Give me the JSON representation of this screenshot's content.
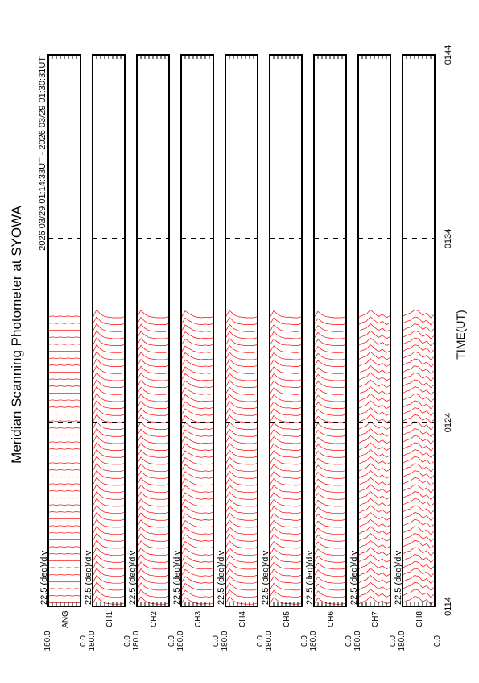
{
  "chart_data": {
    "type": "stacked-scan",
    "title": "Meridian Scanning Photometer at SYOWA",
    "subtitle": "2026 03/29 01:14:33UT - 2026 03/29 01:30:31UT",
    "x_label": "TIME(UT)",
    "xlim": [
      0,
      30
    ],
    "xticks": [
      {
        "value": 0,
        "label": "0114"
      },
      {
        "value": 10,
        "label": "0124"
      },
      {
        "value": 20,
        "label": "0134"
      },
      {
        "value": 30,
        "label": "0144"
      }
    ],
    "angles": [
      0,
      22.5,
      45,
      67.5,
      90,
      112.5,
      135,
      157.5,
      180
    ],
    "angle_ticks": [
      {
        "value": 180,
        "label": "180.0"
      },
      {
        "value": 0,
        "label": "0.0"
      }
    ],
    "scale_label": "22.5 (deg)/div",
    "color": "#ff0000",
    "scan_times": [
      0,
      0.38,
      0.76,
      1.14,
      1.52,
      1.9,
      2.28,
      2.66,
      3.04,
      3.42,
      3.8,
      4.18,
      4.56,
      4.94,
      5.32,
      5.7,
      6.08,
      6.46,
      6.84,
      7.22,
      7.6,
      7.98,
      8.36,
      8.74,
      9.12,
      9.5,
      9.88,
      10.26,
      10.64,
      11.02,
      11.4,
      11.78,
      12.16,
      12.54,
      12.92,
      13.3,
      13.68,
      14.06,
      14.44,
      14.82,
      15.2,
      15.58
    ],
    "series": [
      {
        "name": "ANG",
        "values": [
          0.3,
          0.35,
          0.3,
          0.35,
          0.3,
          0.35,
          0.3,
          0.35,
          0.3
        ]
      },
      {
        "name": "CH1",
        "values": [
          0.3,
          0.2,
          0.2,
          0.2,
          0.25,
          0.3,
          0.5,
          0.9,
          0.2
        ]
      },
      {
        "name": "CH2",
        "values": [
          0.3,
          0.2,
          0.2,
          0.2,
          0.25,
          0.3,
          0.5,
          0.85,
          0.2
        ]
      },
      {
        "name": "CH3",
        "values": [
          0.3,
          0.2,
          0.25,
          0.2,
          0.25,
          0.35,
          0.55,
          0.8,
          0.2
        ]
      },
      {
        "name": "CH4",
        "values": [
          0.3,
          0.2,
          0.2,
          0.2,
          0.25,
          0.3,
          0.5,
          0.85,
          0.2
        ]
      },
      {
        "name": "CH5",
        "values": [
          0.3,
          0.2,
          0.2,
          0.25,
          0.25,
          0.3,
          0.5,
          0.8,
          0.2
        ]
      },
      {
        "name": "CH6",
        "values": [
          0.3,
          0.2,
          0.2,
          0.2,
          0.25,
          0.3,
          0.45,
          0.75,
          0.2
        ]
      },
      {
        "name": "CH7",
        "values": [
          0.4,
          0.2,
          0.5,
          0.3,
          0.6,
          0.9,
          0.5,
          0.4,
          0.2
        ]
      },
      {
        "name": "CH8",
        "values": [
          0.5,
          0.2,
          0.6,
          0.4,
          0.8,
          0.9,
          0.6,
          0.5,
          0.3
        ]
      }
    ]
  }
}
